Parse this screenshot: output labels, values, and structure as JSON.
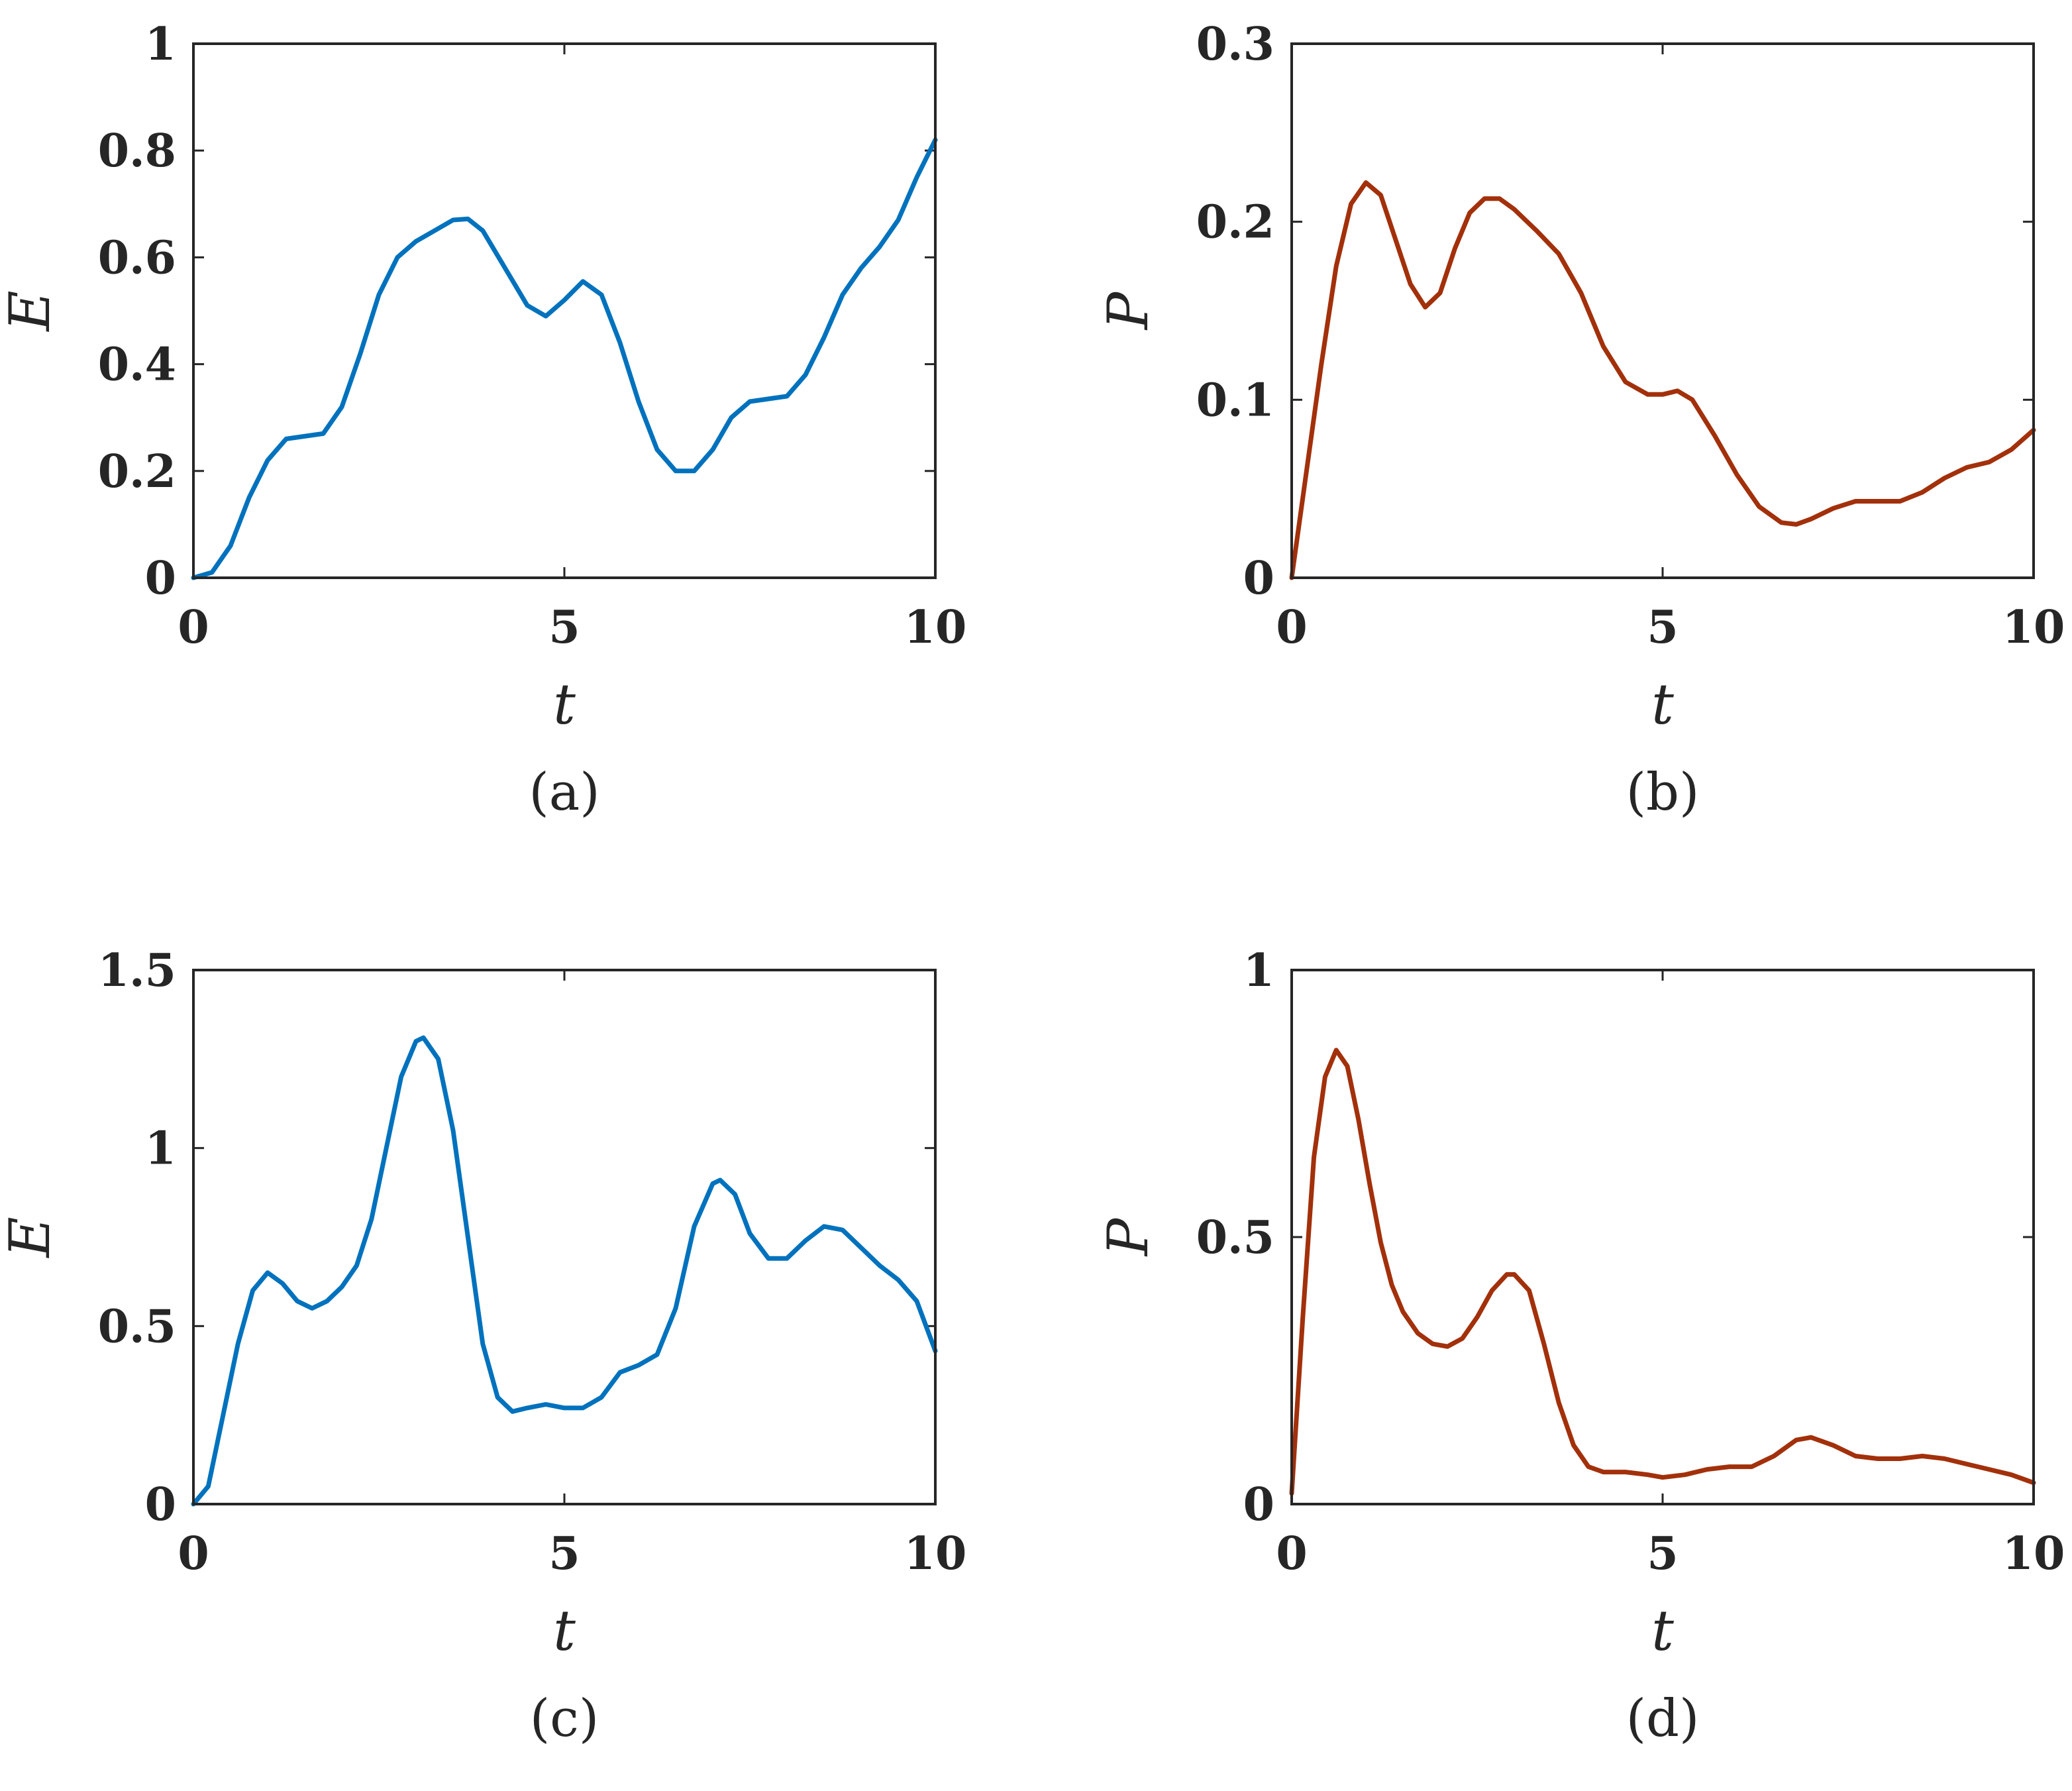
{
  "colors": {
    "E_series": "#0072BD",
    "P_series": "#A2300A",
    "axes": "#262626"
  },
  "chart_data": [
    {
      "type": "line",
      "caption": "(a)",
      "xlabel": "t",
      "ylabel": "E",
      "xlim": [
        0,
        10
      ],
      "ylim": [
        0,
        1
      ],
      "xticks": [
        0,
        5,
        10
      ],
      "yticks": [
        0,
        0.2,
        0.4,
        0.6,
        0.8,
        1
      ],
      "xtick_labels": [
        "0",
        "5",
        "10"
      ],
      "ytick_labels": [
        "0",
        "0.2",
        "0.4",
        "0.6",
        "0.8",
        "1"
      ],
      "color": "#0072BD",
      "series": [
        {
          "x": [
            0,
            0.25,
            0.5,
            0.75,
            1.0,
            1.25,
            1.5,
            1.75,
            2.0,
            2.25,
            2.5,
            2.75,
            3.0,
            3.25,
            3.5,
            3.7,
            3.9,
            4.2,
            4.5,
            4.75,
            5.0,
            5.25,
            5.5,
            5.75,
            6.0,
            6.25,
            6.5,
            6.75,
            7.0,
            7.25,
            7.5,
            7.75,
            8.0,
            8.25,
            8.5,
            8.75,
            9.0,
            9.25,
            9.5,
            9.75,
            10.0
          ],
          "y": [
            0.0,
            0.01,
            0.06,
            0.15,
            0.22,
            0.26,
            0.265,
            0.27,
            0.32,
            0.42,
            0.53,
            0.6,
            0.63,
            0.65,
            0.67,
            0.672,
            0.65,
            0.58,
            0.51,
            0.49,
            0.52,
            0.555,
            0.53,
            0.44,
            0.33,
            0.24,
            0.2,
            0.2,
            0.24,
            0.3,
            0.33,
            0.335,
            0.34,
            0.38,
            0.45,
            0.53,
            0.58,
            0.62,
            0.67,
            0.75,
            0.82
          ]
        }
      ]
    },
    {
      "type": "line",
      "caption": "(b)",
      "xlabel": "t",
      "ylabel": "P",
      "xlim": [
        0,
        10
      ],
      "ylim": [
        0,
        0.3
      ],
      "xticks": [
        0,
        5,
        10
      ],
      "yticks": [
        0,
        0.1,
        0.2,
        0.3
      ],
      "xtick_labels": [
        "0",
        "5",
        "10"
      ],
      "ytick_labels": [
        "0",
        "0.1",
        "0.2",
        "0.3"
      ],
      "color": "#A2300A",
      "series": [
        {
          "x": [
            0,
            0.2,
            0.4,
            0.6,
            0.8,
            1.0,
            1.2,
            1.4,
            1.6,
            1.8,
            2.0,
            2.2,
            2.4,
            2.6,
            2.8,
            3.0,
            3.3,
            3.6,
            3.9,
            4.2,
            4.5,
            4.8,
            5.0,
            5.2,
            5.4,
            5.7,
            6.0,
            6.3,
            6.6,
            6.8,
            7.0,
            7.3,
            7.6,
            7.9,
            8.2,
            8.5,
            8.8,
            9.1,
            9.4,
            9.7,
            10.0
          ],
          "y": [
            0.0,
            0.06,
            0.12,
            0.175,
            0.21,
            0.222,
            0.215,
            0.19,
            0.165,
            0.152,
            0.16,
            0.185,
            0.205,
            0.213,
            0.213,
            0.207,
            0.195,
            0.182,
            0.16,
            0.13,
            0.11,
            0.103,
            0.103,
            0.105,
            0.1,
            0.08,
            0.058,
            0.04,
            0.031,
            0.03,
            0.033,
            0.039,
            0.043,
            0.043,
            0.043,
            0.048,
            0.056,
            0.062,
            0.065,
            0.072,
            0.083
          ]
        }
      ]
    },
    {
      "type": "line",
      "caption": "(c)",
      "xlabel": "t",
      "ylabel": "E",
      "xlim": [
        0,
        10
      ],
      "ylim": [
        0,
        1.5
      ],
      "xticks": [
        0,
        5,
        10
      ],
      "yticks": [
        0,
        0.5,
        1,
        1.5
      ],
      "xtick_labels": [
        "0",
        "5",
        "10"
      ],
      "ytick_labels": [
        "0",
        "0.5",
        "1",
        "1.5"
      ],
      "color": "#0072BD",
      "series": [
        {
          "x": [
            0,
            0.2,
            0.4,
            0.6,
            0.8,
            1.0,
            1.2,
            1.4,
            1.6,
            1.8,
            2.0,
            2.2,
            2.4,
            2.6,
            2.8,
            3.0,
            3.1,
            3.3,
            3.5,
            3.7,
            3.9,
            4.1,
            4.3,
            4.5,
            4.75,
            5.0,
            5.25,
            5.5,
            5.75,
            6.0,
            6.25,
            6.5,
            6.75,
            7.0,
            7.1,
            7.3,
            7.5,
            7.75,
            8.0,
            8.25,
            8.5,
            8.75,
            9.0,
            9.25,
            9.5,
            9.75,
            10.0
          ],
          "y": [
            0.0,
            0.05,
            0.25,
            0.45,
            0.6,
            0.65,
            0.62,
            0.57,
            0.55,
            0.57,
            0.61,
            0.67,
            0.8,
            1.0,
            1.2,
            1.3,
            1.31,
            1.25,
            1.05,
            0.75,
            0.45,
            0.3,
            0.26,
            0.27,
            0.28,
            0.27,
            0.27,
            0.3,
            0.37,
            0.39,
            0.42,
            0.55,
            0.78,
            0.9,
            0.91,
            0.87,
            0.76,
            0.69,
            0.69,
            0.74,
            0.78,
            0.77,
            0.72,
            0.67,
            0.63,
            0.57,
            0.43
          ]
        }
      ]
    },
    {
      "type": "line",
      "caption": "(d)",
      "xlabel": "t",
      "ylabel": "P",
      "xlim": [
        0,
        10
      ],
      "ylim": [
        0,
        1
      ],
      "xticks": [
        0,
        5,
        10
      ],
      "yticks": [
        0,
        0.5,
        1
      ],
      "xtick_labels": [
        "0",
        "5",
        "10"
      ],
      "ytick_labels": [
        "0",
        "0.5",
        "1"
      ],
      "color": "#A2300A",
      "series": [
        {
          "x": [
            0,
            0.15,
            0.3,
            0.45,
            0.6,
            0.75,
            0.9,
            1.05,
            1.2,
            1.35,
            1.5,
            1.7,
            1.9,
            2.1,
            2.3,
            2.5,
            2.7,
            2.9,
            3.0,
            3.2,
            3.4,
            3.6,
            3.8,
            4.0,
            4.2,
            4.5,
            4.8,
            5.0,
            5.3,
            5.6,
            5.9,
            6.2,
            6.5,
            6.8,
            7.0,
            7.3,
            7.6,
            7.9,
            8.2,
            8.5,
            8.8,
            9.1,
            9.4,
            9.7,
            10.0
          ],
          "y": [
            0.02,
            0.35,
            0.65,
            0.8,
            0.85,
            0.82,
            0.72,
            0.6,
            0.49,
            0.41,
            0.36,
            0.32,
            0.3,
            0.295,
            0.31,
            0.35,
            0.4,
            0.43,
            0.43,
            0.4,
            0.3,
            0.19,
            0.11,
            0.07,
            0.06,
            0.06,
            0.055,
            0.05,
            0.055,
            0.065,
            0.07,
            0.07,
            0.09,
            0.12,
            0.125,
            0.11,
            0.09,
            0.085,
            0.085,
            0.09,
            0.085,
            0.075,
            0.065,
            0.055,
            0.04
          ]
        }
      ]
    }
  ]
}
